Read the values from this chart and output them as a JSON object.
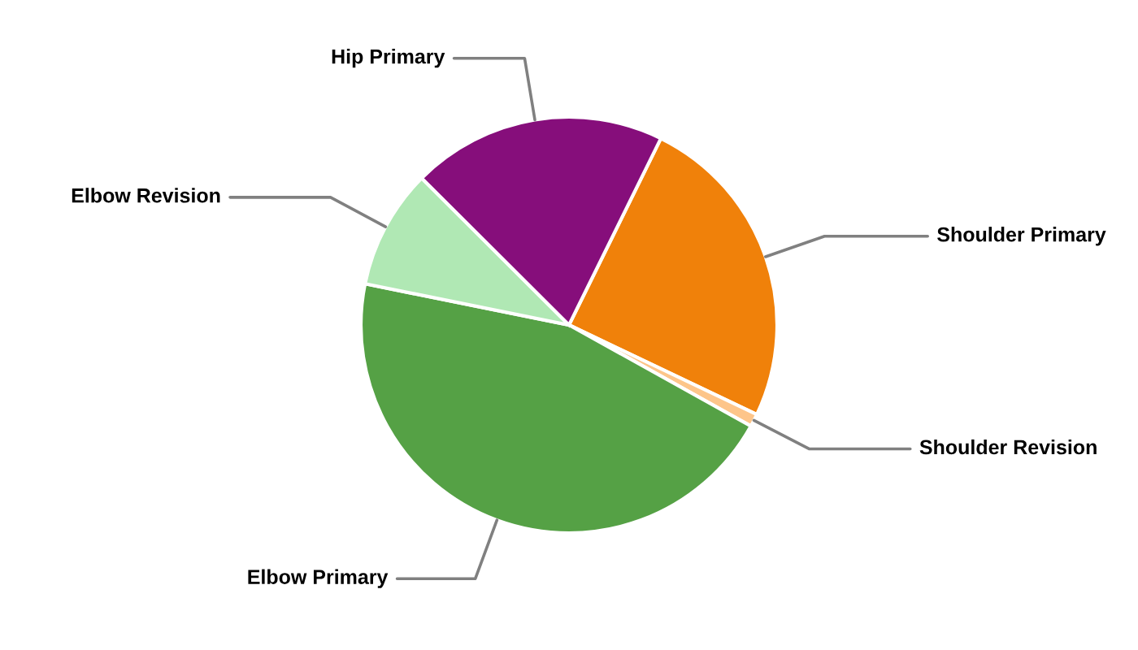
{
  "chart_data": {
    "type": "pie",
    "categories": [
      "Shoulder Primary",
      "Shoulder Revision",
      "Elbow Primary",
      "Elbow Revision",
      "Hip Primary"
    ],
    "values": [
      24.8,
      1.0,
      45.1,
      9.3,
      19.8
    ],
    "colors": [
      "#f0810a",
      "#fdc58a",
      "#55a145",
      "#b0e8b4",
      "#860e7b"
    ],
    "legend": false
  }
}
